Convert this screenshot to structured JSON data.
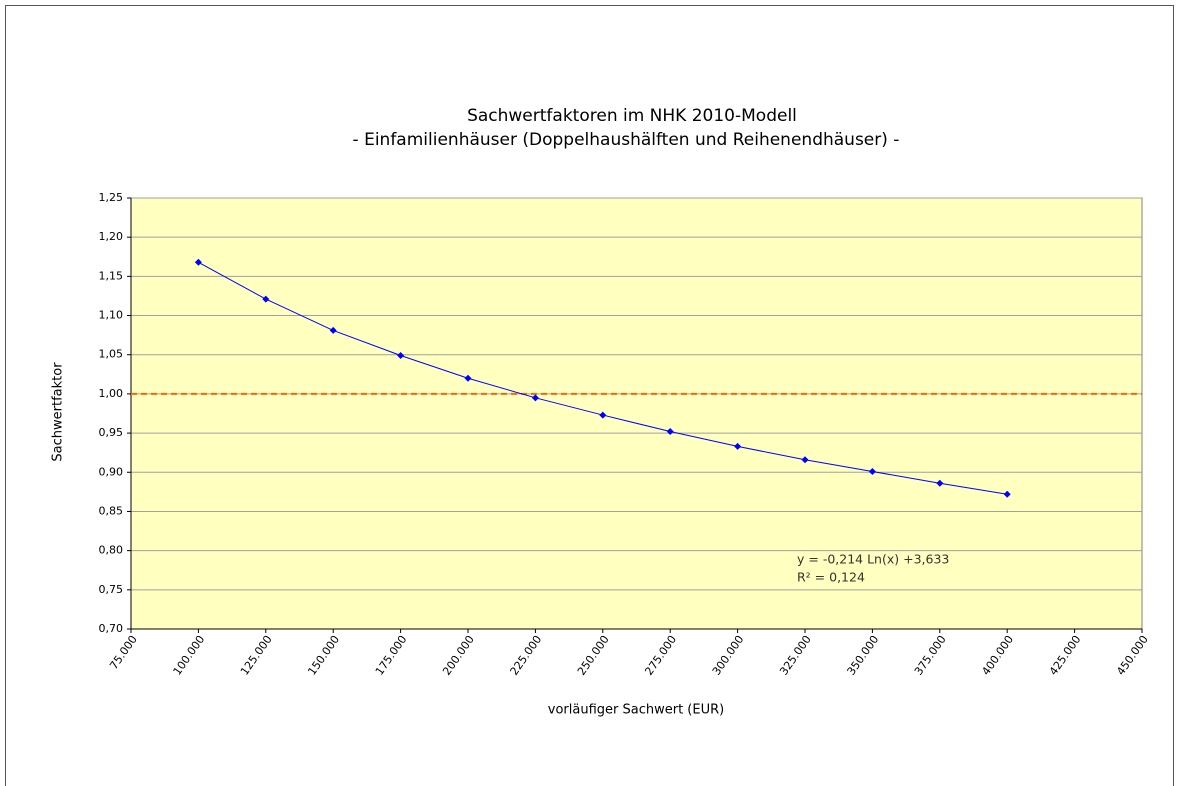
{
  "chart_data": {
    "type": "line",
    "title": "Sachwertfaktoren im NHK 2010-Modell",
    "subtitle": "- Einfamilienhäuser (Doppelhaushälften und Reihenendhäuser) -",
    "xlabel": "vorläufiger Sachwert (EUR)",
    "ylabel": "Sachwertfaktor",
    "x": [
      100000,
      125000,
      150000,
      175000,
      200000,
      225000,
      250000,
      275000,
      300000,
      325000,
      350000,
      375000,
      400000
    ],
    "series": [
      {
        "name": "Sachwertfaktor",
        "color": "#0000ff",
        "values": [
          1.168,
          1.121,
          1.081,
          1.049,
          1.02,
          0.995,
          0.973,
          0.952,
          0.933,
          0.916,
          0.901,
          0.886,
          0.872
        ]
      }
    ],
    "xlim": [
      75000,
      450000
    ],
    "xticks": [
      {
        "value": 75000,
        "label": "75.000"
      },
      {
        "value": 100000,
        "label": "100.000"
      },
      {
        "value": 125000,
        "label": "125.000"
      },
      {
        "value": 150000,
        "label": "150.000"
      },
      {
        "value": 175000,
        "label": "175.000"
      },
      {
        "value": 200000,
        "label": "200.000"
      },
      {
        "value": 225000,
        "label": "225.000"
      },
      {
        "value": 250000,
        "label": "250.000"
      },
      {
        "value": 275000,
        "label": "275.000"
      },
      {
        "value": 300000,
        "label": "300.000"
      },
      {
        "value": 325000,
        "label": "325.000"
      },
      {
        "value": 350000,
        "label": "350.000"
      },
      {
        "value": 375000,
        "label": "375.000"
      },
      {
        "value": 400000,
        "label": "400.000"
      },
      {
        "value": 425000,
        "label": "425.000"
      },
      {
        "value": 450000,
        "label": "450.000"
      }
    ],
    "ylim": [
      0.7,
      1.25
    ],
    "yticks": [
      {
        "value": 0.7,
        "label": "0,70"
      },
      {
        "value": 0.75,
        "label": "0,75"
      },
      {
        "value": 0.8,
        "label": "0,80"
      },
      {
        "value": 0.85,
        "label": "0,85"
      },
      {
        "value": 0.9,
        "label": "0,90"
      },
      {
        "value": 0.95,
        "label": "0,95"
      },
      {
        "value": 1.0,
        "label": "1,00"
      },
      {
        "value": 1.05,
        "label": "1,05"
      },
      {
        "value": 1.1,
        "label": "1,10"
      },
      {
        "value": 1.15,
        "label": "1,15"
      },
      {
        "value": 1.2,
        "label": "1,20"
      },
      {
        "value": 1.25,
        "label": "1,25"
      }
    ],
    "grid": true,
    "plot_background": "#ffffc0",
    "reference_line": {
      "value": 1.0,
      "color": "#ff6600"
    },
    "annotations": [
      "y = -0,214 Ln(x) +3,633",
      "R² = 0,124"
    ]
  }
}
